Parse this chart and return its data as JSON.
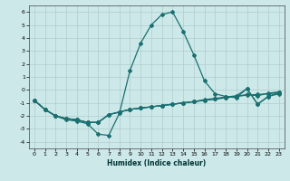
{
  "xlabel": "Humidex (Indice chaleur)",
  "bg_color": "#cce8e8",
  "grid_color": "#b0cccc",
  "line_color": "#1a7070",
  "xlim": [
    -0.5,
    23.5
  ],
  "ylim": [
    -4.5,
    6.5
  ],
  "yticks": [
    -4,
    -3,
    -2,
    -1,
    0,
    1,
    2,
    3,
    4,
    5,
    6
  ],
  "xticks": [
    0,
    1,
    2,
    3,
    4,
    5,
    6,
    7,
    8,
    9,
    10,
    11,
    12,
    13,
    14,
    15,
    16,
    17,
    18,
    19,
    20,
    21,
    22,
    23
  ],
  "lines": [
    {
      "x": [
        0,
        1,
        2,
        3,
        4,
        5,
        6,
        7,
        8,
        9,
        10,
        11,
        12,
        13,
        14,
        15,
        16,
        17,
        18,
        19,
        20,
        21,
        22,
        23
      ],
      "y": [
        -0.8,
        -1.5,
        -2.0,
        -2.3,
        -2.4,
        -2.6,
        -3.4,
        -3.5,
        -1.8,
        1.5,
        3.6,
        5.0,
        5.8,
        6.0,
        4.5,
        2.7,
        0.7,
        -0.3,
        -0.5,
        -0.6,
        0.1,
        -1.1,
        -0.5,
        -0.3
      ]
    },
    {
      "x": [
        0,
        1,
        2,
        3,
        4,
        5,
        6,
        7,
        8,
        9,
        10,
        11,
        12,
        13,
        14,
        15,
        16,
        17,
        18,
        19,
        20,
        21,
        22,
        23
      ],
      "y": [
        -0.8,
        -1.5,
        -2.0,
        -2.2,
        -2.3,
        -2.5,
        -2.5,
        -1.9,
        -1.7,
        -1.5,
        -1.4,
        -1.3,
        -1.2,
        -1.1,
        -1.0,
        -0.9,
        -0.8,
        -0.7,
        -0.6,
        -0.5,
        -0.35,
        -0.45,
        -0.25,
        -0.15
      ]
    },
    {
      "x": [
        0,
        1,
        2,
        3,
        4,
        5,
        6,
        7,
        8,
        9,
        10,
        11,
        12,
        13,
        14,
        15,
        16,
        17,
        18,
        19,
        20,
        21,
        22,
        23
      ],
      "y": [
        -0.8,
        -1.5,
        -2.0,
        -2.2,
        -2.3,
        -2.5,
        -2.5,
        -1.9,
        -1.7,
        -1.5,
        -1.4,
        -1.3,
        -1.2,
        -1.1,
        -1.0,
        -0.9,
        -0.75,
        -0.65,
        -0.55,
        -0.45,
        0.1,
        -1.1,
        -0.5,
        -0.2
      ]
    },
    {
      "x": [
        0,
        1,
        2,
        3,
        4,
        5,
        6,
        7,
        8,
        9,
        10,
        11,
        12,
        13,
        14,
        15,
        16,
        17,
        18,
        19,
        20,
        21,
        22,
        23
      ],
      "y": [
        -0.8,
        -1.5,
        -2.0,
        -2.2,
        -2.3,
        -2.5,
        -2.5,
        -1.9,
        -1.7,
        -1.5,
        -1.4,
        -1.3,
        -1.2,
        -1.1,
        -1.0,
        -0.9,
        -0.8,
        -0.7,
        -0.6,
        -0.5,
        -0.4,
        -0.35,
        -0.3,
        -0.2
      ]
    }
  ]
}
